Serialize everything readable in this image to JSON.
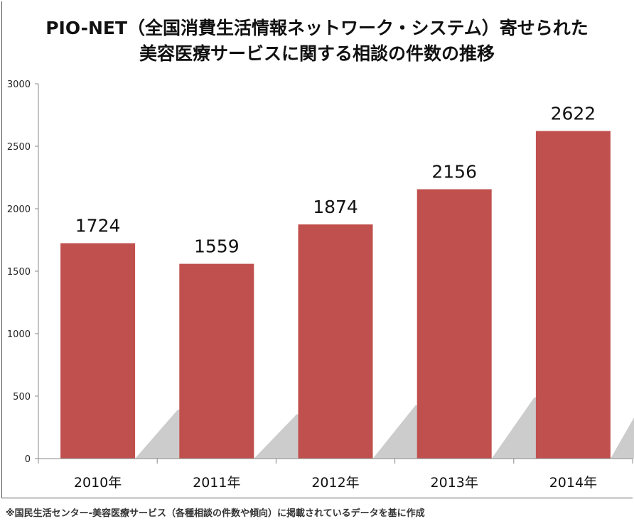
{
  "chart_data": {
    "type": "bar",
    "title": [
      "PIO-NET（全国消費生活情報ネットワーク・システム）寄せられた",
      "美容医療サービスに関する相談の件数の推移"
    ],
    "categories": [
      "2010年",
      "2011年",
      "2012年",
      "2013年",
      "2014年"
    ],
    "values": [
      1724,
      1559,
      1874,
      2156,
      2622
    ],
    "data_labels": [
      "1724",
      "1559",
      "1874",
      "2156",
      "2622"
    ],
    "xlabel": "",
    "ylabel": "",
    "ylim": [
      0,
      3000
    ],
    "yticks": [
      "0",
      "500",
      "1000",
      "1500",
      "2000",
      "2500",
      "3000"
    ],
    "grid": false,
    "bar_color": "#c0504d",
    "shadow_color": "#cccccc"
  },
  "footnote": "※国民生活センター-美容医療サービス（各種相談の件数や傾向）に掲載されているデータを基に作成"
}
